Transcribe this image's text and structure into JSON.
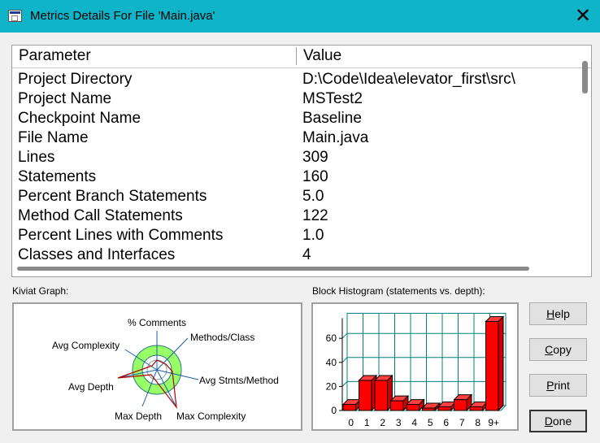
{
  "window": {
    "title": "Metrics Details For File 'Main.java'"
  },
  "table": {
    "headers": [
      "Parameter",
      "Value"
    ],
    "rows": [
      [
        "Project Directory",
        "D:\\Code\\Idea\\elevator_first\\src\\"
      ],
      [
        "Project Name",
        "MSTest2"
      ],
      [
        "Checkpoint Name",
        "Baseline"
      ],
      [
        "File Name",
        "Main.java"
      ],
      [
        "Lines",
        "309"
      ],
      [
        "Statements",
        "160"
      ],
      [
        "Percent Branch Statements",
        "5.0"
      ],
      [
        "Method Call Statements",
        "122"
      ],
      [
        "Percent Lines with Comments",
        "1.0"
      ],
      [
        "Classes and Interfaces",
        "4"
      ]
    ]
  },
  "kiviat": {
    "label": "Kiviat Graph:",
    "axes": [
      "% Comments",
      "Methods/Class",
      "Avg Stmts/Method",
      "Max Complexity",
      "Max Depth",
      "Avg Depth",
      "Avg Complexity"
    ]
  },
  "histogram": {
    "label": "Block Histogram (statements vs. depth):",
    "chart_data": {
      "type": "bar",
      "categories": [
        "0",
        "1",
        "2",
        "3",
        "4",
        "5",
        "6",
        "7",
        "8",
        "9+"
      ],
      "values": [
        5,
        25,
        25,
        8,
        5,
        2,
        3,
        9,
        3,
        74
      ],
      "ylim": [
        0,
        70
      ],
      "yticks": [
        0,
        20,
        40,
        60
      ],
      "grid": true
    }
  },
  "buttons": {
    "help": {
      "pre": "",
      "key": "H",
      "post": "elp"
    },
    "copy": {
      "pre": "",
      "key": "C",
      "post": "opy"
    },
    "print": {
      "pre": "",
      "key": "P",
      "post": "rint"
    },
    "done": {
      "pre": "",
      "key": "D",
      "post": "one"
    }
  },
  "colors": {
    "titlebar": "#0fb4c8",
    "bar": "#ff0000",
    "kiviat_ring": "#99ff66",
    "grid": "#008080"
  }
}
